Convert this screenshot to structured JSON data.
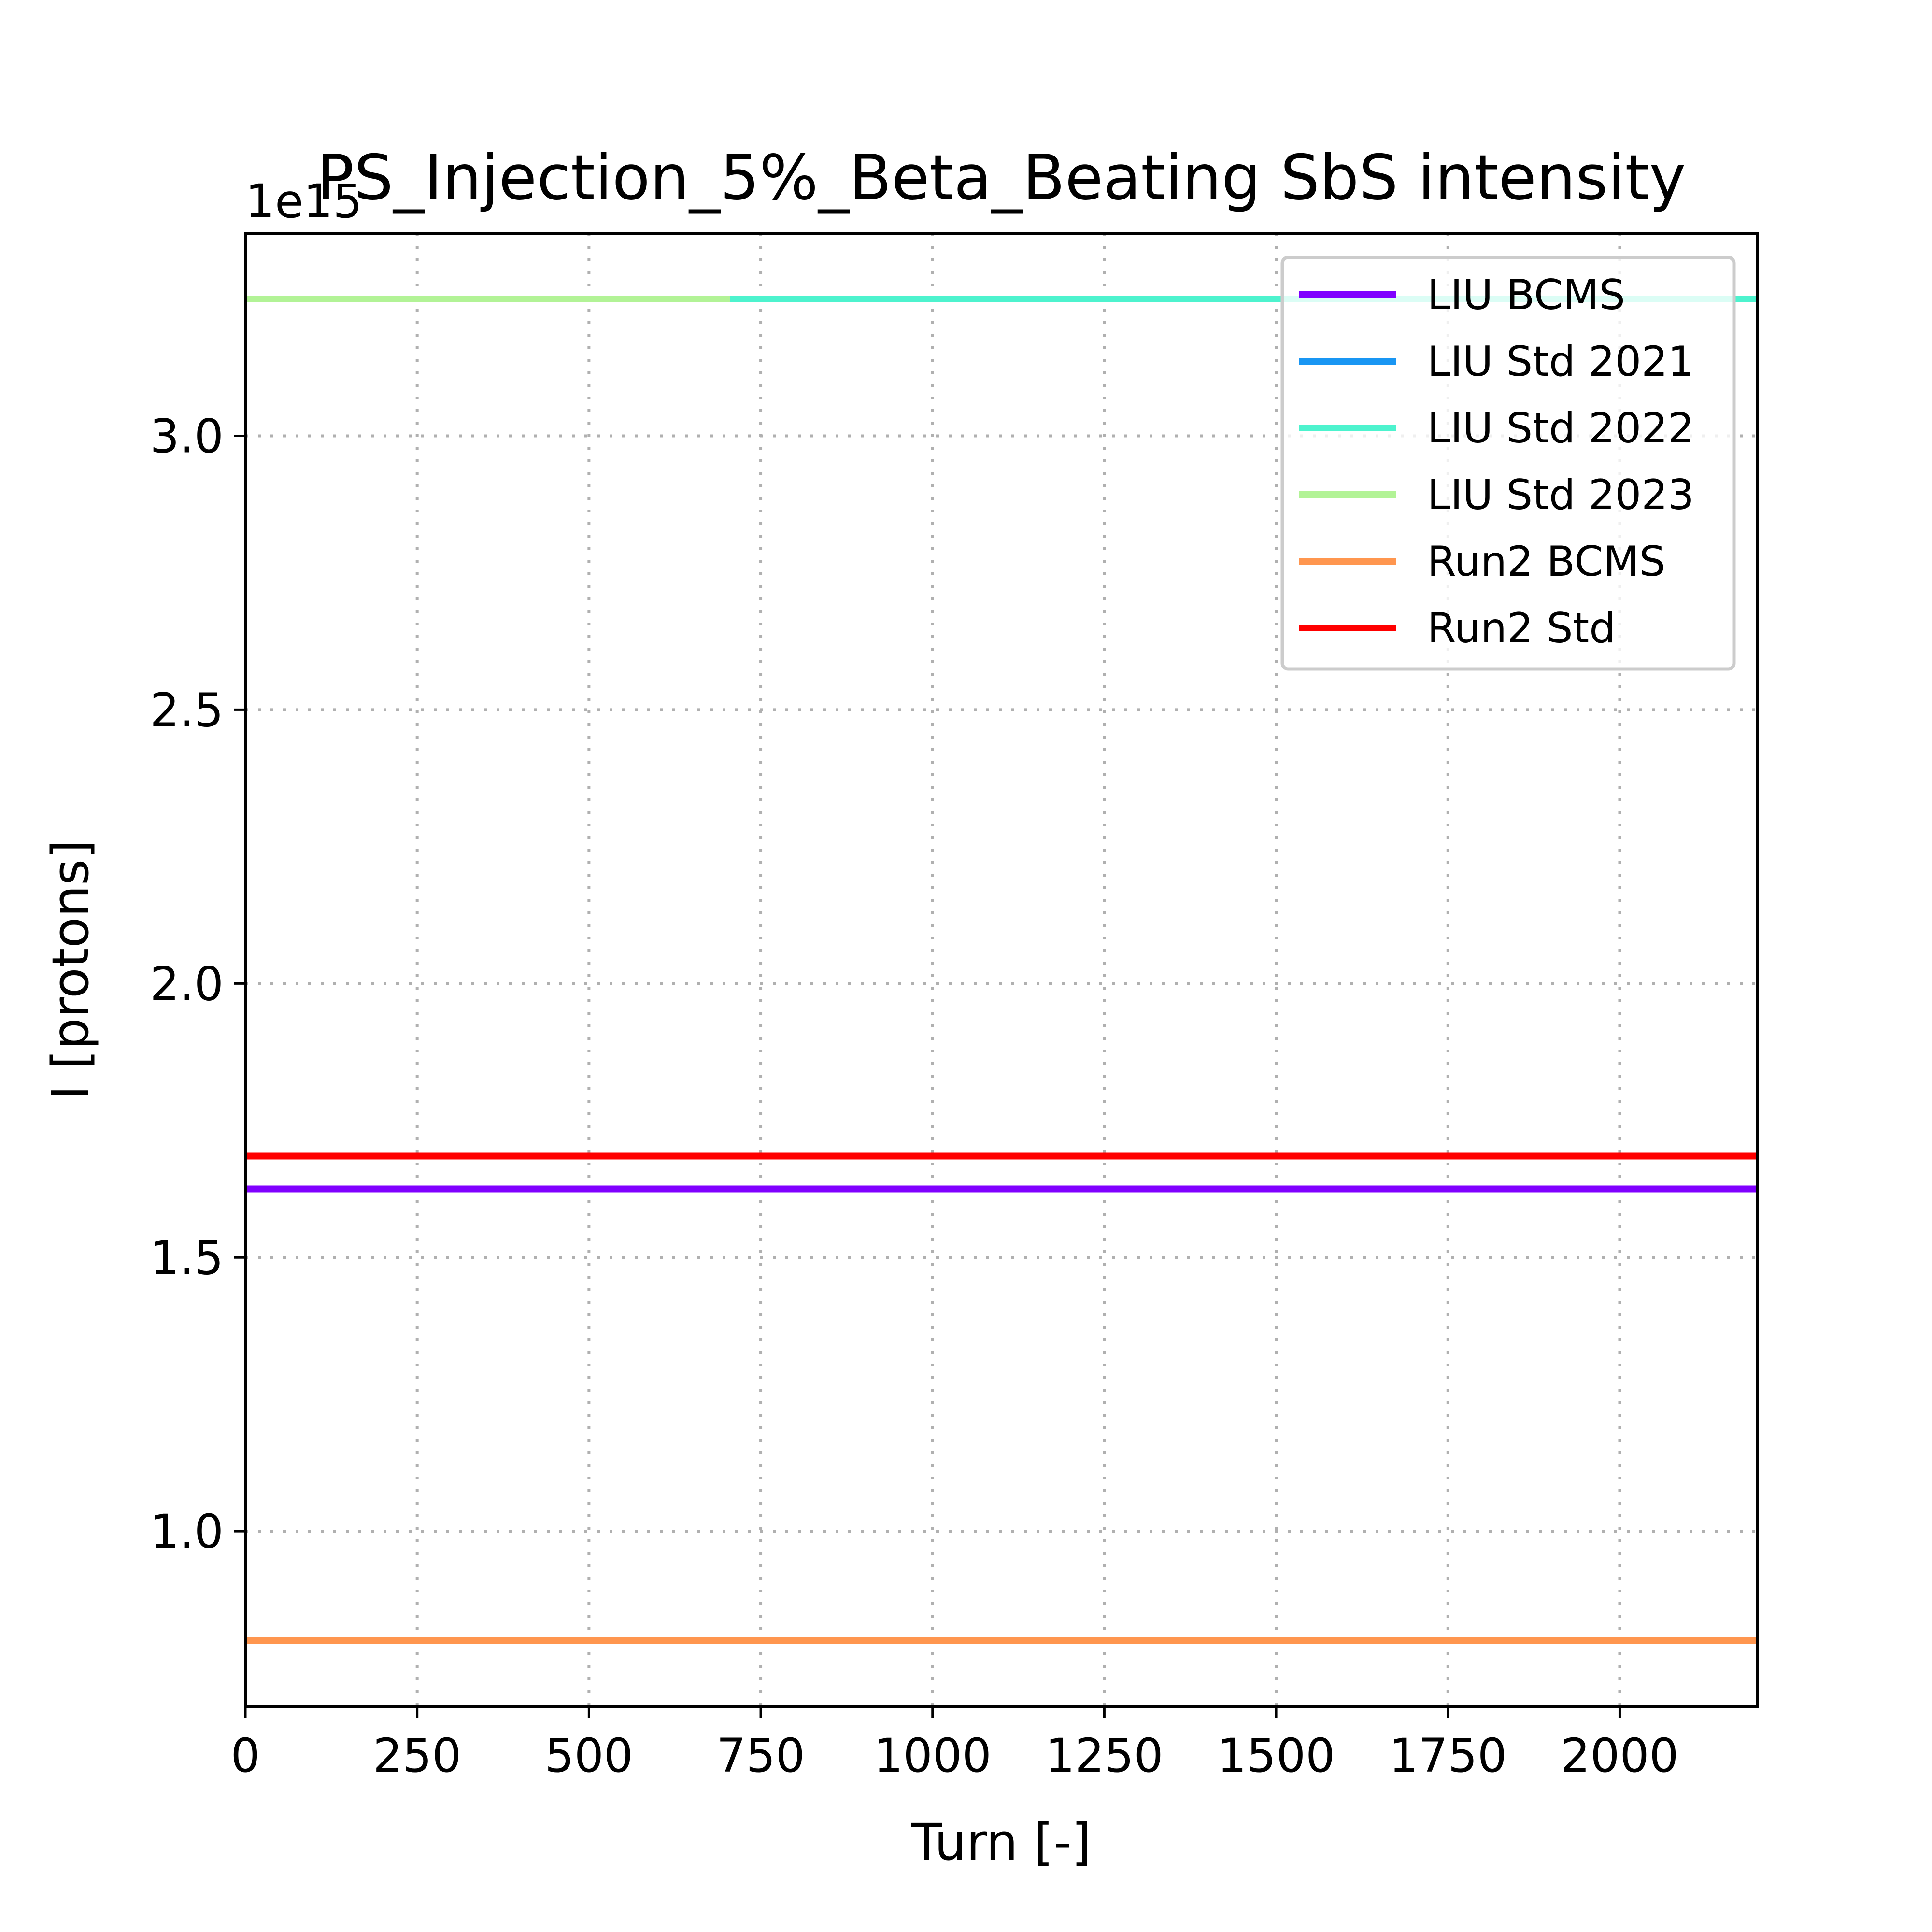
{
  "chart_data": {
    "type": "line",
    "title": "PS_Injection_5%_Beta_Beating SbS intensity",
    "xlabel": "Turn [-]",
    "ylabel": "I [protons]",
    "y_offset_label": "1e15",
    "xlim": [
      0,
      2200
    ],
    "ylim": [
      0.68,
      3.37
    ],
    "x_ticks": [
      0,
      250,
      500,
      750,
      1000,
      1250,
      1500,
      1750,
      2000
    ],
    "x_tick_labels": [
      "0",
      "250",
      "500",
      "750",
      "1000",
      "1250",
      "1500",
      "1750",
      "2000"
    ],
    "y_ticks": [
      1.0,
      1.5,
      2.0,
      2.5,
      3.0
    ],
    "y_tick_labels": [
      "1.0",
      "1.5",
      "2.0",
      "2.5",
      "3.0"
    ],
    "grid": true,
    "legend_position": "top-right",
    "series": [
      {
        "name": "LIU BCMS",
        "color": "#8000ff",
        "x": [
          0,
          2200
        ],
        "y": [
          1.625,
          1.625
        ]
      },
      {
        "name": "LIU Std 2021",
        "color": "#1996f3",
        "x": [
          0,
          2200
        ],
        "y": [
          3.25,
          3.25
        ]
      },
      {
        "name": "LIU Std 2022",
        "color": "#4df3ce",
        "x": [
          0,
          2200
        ],
        "y": [
          3.25,
          3.25
        ]
      },
      {
        "name": "LIU Std 2023",
        "color": "#b2f396",
        "x": [
          0,
          705
        ],
        "y": [
          3.25,
          3.25
        ]
      },
      {
        "name": "Run2 BCMS",
        "color": "#ff964f",
        "x": [
          0,
          2200
        ],
        "y": [
          0.8,
          0.8
        ]
      },
      {
        "name": "Run2 Std",
        "color": "#ff0000",
        "x": [
          0,
          2200
        ],
        "y": [
          1.685,
          1.685
        ]
      }
    ]
  }
}
